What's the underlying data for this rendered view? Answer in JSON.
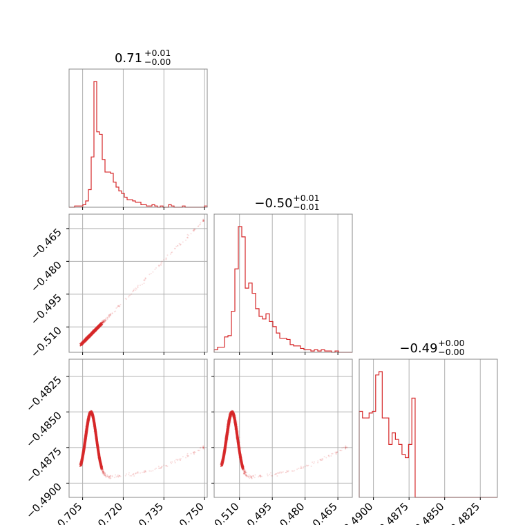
{
  "chart_data": {
    "type": "corner",
    "color": "#d62728",
    "grid": true,
    "titles": [
      {
        "value": "0.71",
        "plus": "+0.01",
        "minus": "−0.00"
      },
      {
        "value": "−0.50",
        "plus": "+0.01",
        "minus": "−0.01"
      },
      {
        "value": "−0.49",
        "plus": "+0.00",
        "minus": "−0.00"
      }
    ],
    "ranges": [
      [
        0.7,
        0.751
      ],
      [
        -0.5216,
        -0.4584
      ],
      [
        -0.491,
        -0.4813
      ]
    ],
    "ticks": [
      {
        "values": [
          0.705,
          0.72,
          0.735,
          0.75
        ],
        "labels": [
          "0.705",
          "0.720",
          "0.735",
          "0.750"
        ]
      },
      {
        "values": [
          -0.51,
          -0.495,
          -0.48,
          -0.465
        ],
        "labels": [
          "−0.510",
          "−0.495",
          "−0.480",
          "−0.465"
        ]
      },
      {
        "values": [
          -0.49,
          -0.4875,
          -0.485,
          -0.4825
        ],
        "labels": [
          "−0.4900",
          "−0.4875",
          "−0.4850",
          "−0.4825"
        ]
      }
    ],
    "histograms": [
      {
        "counts": [
          0,
          0,
          1,
          1,
          1,
          2,
          5,
          14,
          40,
          100,
          60,
          58,
          38,
          28,
          28,
          27,
          20,
          16,
          13,
          11,
          8,
          6,
          6,
          5,
          4,
          4,
          2,
          2,
          1,
          1,
          2,
          1,
          0,
          1,
          0,
          0,
          2,
          1,
          0,
          0,
          0,
          1,
          0,
          0,
          0,
          0,
          0,
          0,
          0,
          1
        ]
      },
      {
        "counts": [
          2,
          4,
          4,
          12,
          13,
          32,
          65,
          98,
          90,
          50,
          54,
          46,
          34,
          28,
          26,
          30,
          24,
          20,
          15,
          11,
          11,
          10,
          6,
          5,
          5,
          3,
          2,
          2,
          1,
          2,
          1,
          2,
          1,
          1,
          0,
          1,
          0,
          0,
          0,
          0
        ]
      },
      {
        "counts": [
          52,
          48,
          48,
          51,
          52,
          74,
          76,
          48,
          48,
          32,
          39,
          35,
          32,
          26,
          24,
          32,
          60,
          0,
          0,
          0,
          0,
          0,
          0,
          0,
          0,
          0,
          0,
          0,
          0,
          0,
          0,
          0,
          0,
          0,
          0,
          0,
          0,
          0,
          0,
          0,
          0,
          0
        ]
      }
    ]
  }
}
